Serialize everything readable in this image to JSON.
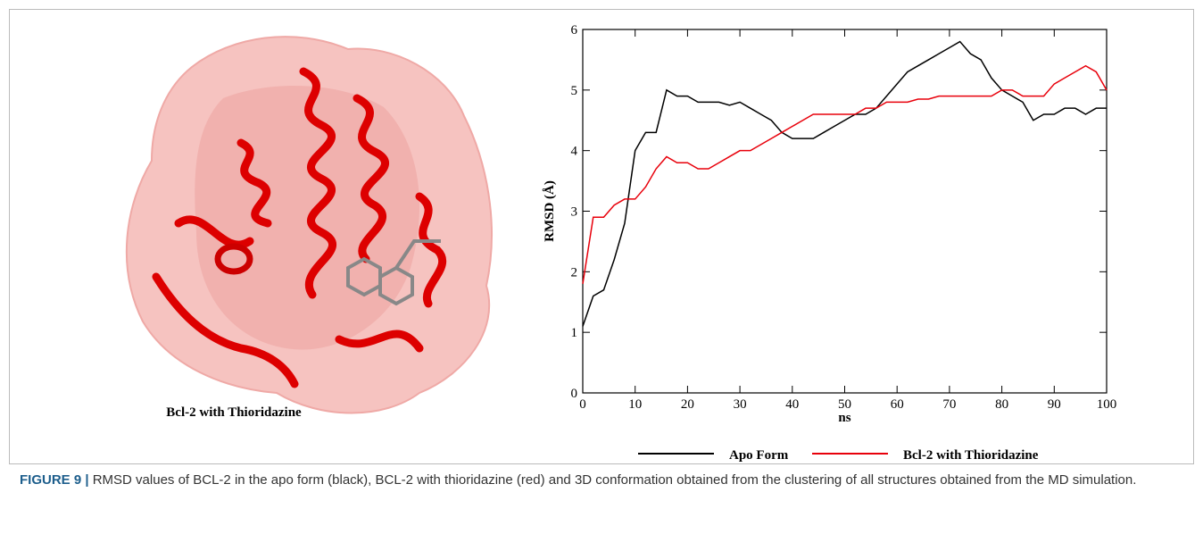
{
  "figure": {
    "image_label": "Bcl-2 with Thioridazine",
    "caption_label": "FIGURE 9 |",
    "caption": "RMSD values of BCL-2 in the apo form (black), BCL-2 with thioridazine (red) and 3D conformation obtained from the clustering of all structures obtained from the MD simulation."
  },
  "chart_data": {
    "type": "line",
    "x_label": "ns",
    "y_label": "RMSD (Å)",
    "x": [
      0,
      2,
      4,
      6,
      8,
      10,
      12,
      14,
      16,
      18,
      20,
      22,
      24,
      26,
      28,
      30,
      32,
      34,
      36,
      38,
      40,
      42,
      44,
      46,
      48,
      50,
      52,
      54,
      56,
      58,
      60,
      62,
      64,
      66,
      68,
      70,
      72,
      74,
      76,
      78,
      80,
      82,
      84,
      86,
      88,
      90,
      92,
      94,
      96,
      98,
      100
    ],
    "series": [
      {
        "name": "Apo Form",
        "color": "#000000",
        "values": [
          1.1,
          1.6,
          1.7,
          2.2,
          2.8,
          4.0,
          4.3,
          4.3,
          5.0,
          4.9,
          4.9,
          4.8,
          4.8,
          4.8,
          4.75,
          4.8,
          4.7,
          4.6,
          4.5,
          4.3,
          4.2,
          4.2,
          4.2,
          4.3,
          4.4,
          4.5,
          4.6,
          4.6,
          4.7,
          4.9,
          5.1,
          5.3,
          5.4,
          5.5,
          5.6,
          5.7,
          5.8,
          5.6,
          5.5,
          5.2,
          5.0,
          4.9,
          4.8,
          4.5,
          4.6,
          4.6,
          4.7,
          4.7,
          4.6,
          4.7,
          4.7
        ]
      },
      {
        "name": "Bcl-2 with Thioridazine",
        "color": "#e8000b",
        "values": [
          1.8,
          2.9,
          2.9,
          3.1,
          3.2,
          3.2,
          3.4,
          3.7,
          3.9,
          3.8,
          3.8,
          3.7,
          3.7,
          3.8,
          3.9,
          4.0,
          4.0,
          4.1,
          4.2,
          4.3,
          4.4,
          4.5,
          4.6,
          4.6,
          4.6,
          4.6,
          4.6,
          4.7,
          4.7,
          4.8,
          4.8,
          4.8,
          4.85,
          4.85,
          4.9,
          4.9,
          4.9,
          4.9,
          4.9,
          4.9,
          5.0,
          5.0,
          4.9,
          4.9,
          4.9,
          5.1,
          5.2,
          5.3,
          5.4,
          5.3,
          5.0
        ]
      }
    ],
    "xlim": [
      0,
      100
    ],
    "xticks": [
      0,
      10,
      20,
      30,
      40,
      50,
      60,
      70,
      80,
      90,
      100
    ],
    "ylim": [
      0,
      6
    ],
    "yticks": [
      0,
      1,
      2,
      3,
      4,
      5,
      6
    ]
  }
}
